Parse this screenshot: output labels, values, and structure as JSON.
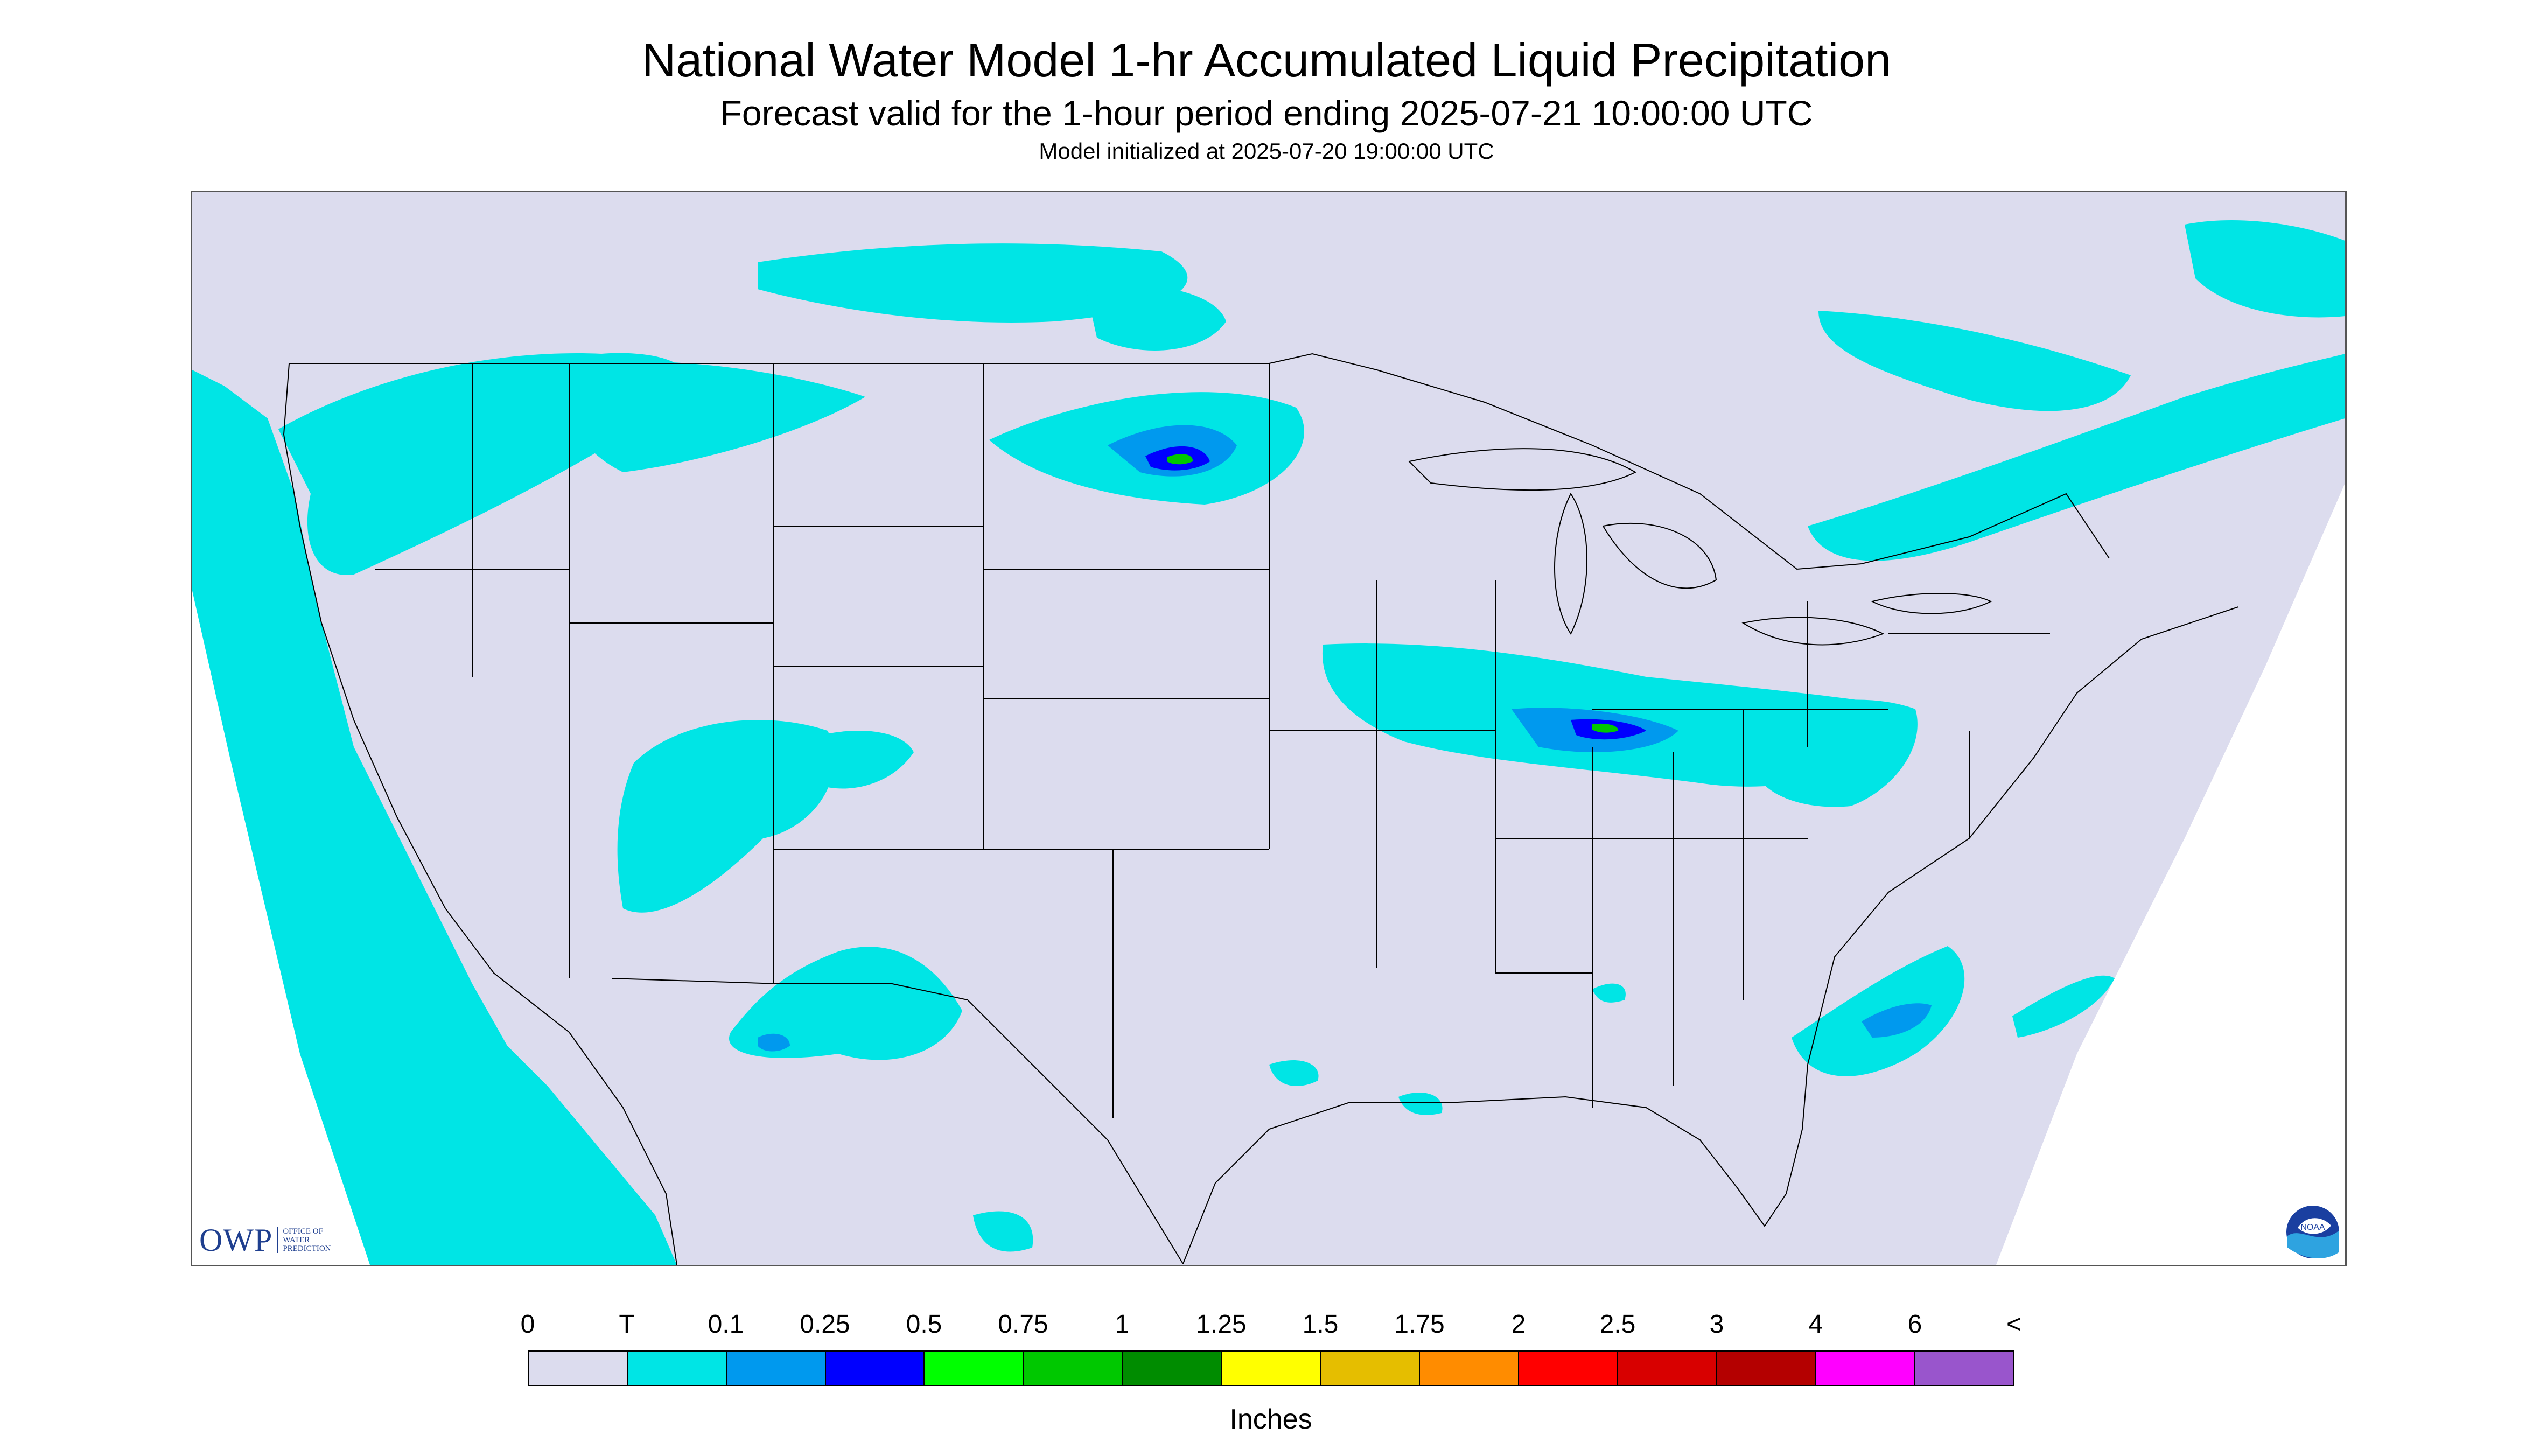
{
  "title": "National Water Model 1-hr Accumulated Liquid Precipitation",
  "subtitle": "Forecast valid for the 1-hour period ending 2025-07-21 10:00:00 UTC",
  "init_text": "Model initialized at 2025-07-20 19:00:00 UTC",
  "logos": {
    "owp_mark": "OWP",
    "owp_text": "OFFICE OF WATER PREDICTION",
    "noaa": "NOAA"
  },
  "legend": {
    "units": "Inches",
    "labels": [
      "0",
      "T",
      "0.1",
      "0.25",
      "0.5",
      "0.75",
      "1",
      "1.25",
      "1.5",
      "1.75",
      "2",
      "2.5",
      "3",
      "4",
      "6",
      "<"
    ],
    "colors": [
      "#dcdcee",
      "#00e5e5",
      "#0099ee",
      "#0000ff",
      "#00ff00",
      "#00c800",
      "#008c00",
      "#ffff00",
      "#e5be00",
      "#ff8c00",
      "#ff0000",
      "#d80000",
      "#b40000",
      "#ff00ff",
      "#9955cc"
    ]
  },
  "map": {
    "background_color": "#dcdcee",
    "outside_domain_color": "#ffffff",
    "boundary_color": "#000000"
  }
}
